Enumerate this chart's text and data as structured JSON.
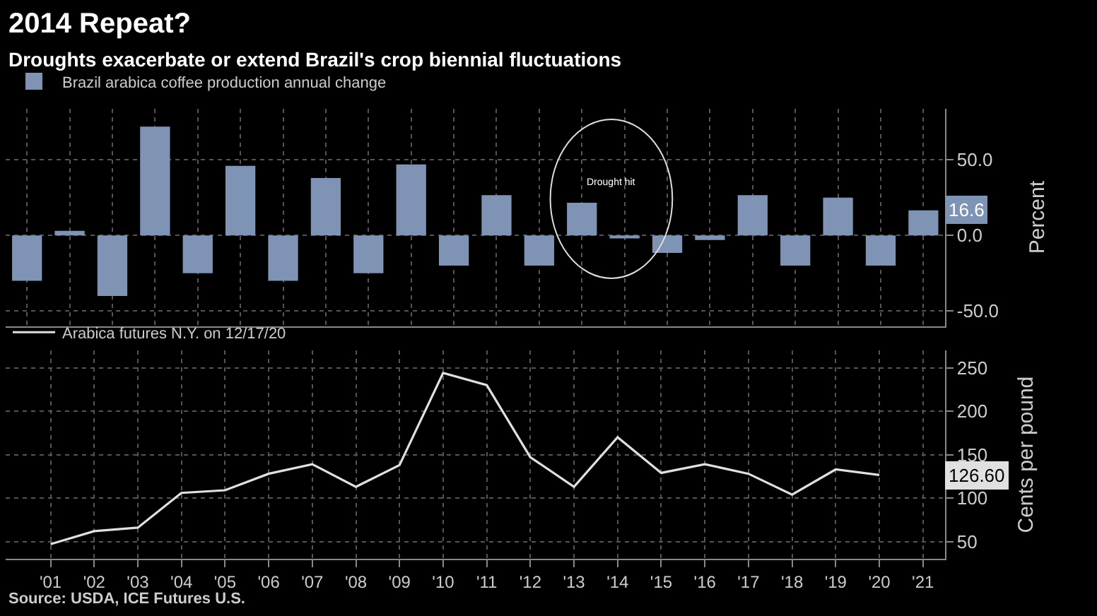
{
  "chart_data": [
    {
      "type": "bar",
      "title": "2014 Repeat?",
      "subtitle": "Droughts exacerbate or extend Brazil's crop biennial fluctuations",
      "ylabel": "Percent",
      "categories": [
        null,
        null,
        null,
        null,
        null,
        null,
        null,
        null,
        null,
        null,
        null,
        null,
        null,
        null,
        null,
        null,
        null,
        null,
        null,
        null,
        null,
        null
      ],
      "series": [
        {
          "name": "Brazil arabica coffee production annual change",
          "color": "#7f93b5",
          "values": [
            -30,
            3,
            -40,
            72,
            -25,
            46,
            -30,
            38,
            -25,
            47,
            -20,
            26.6,
            -20,
            21.6,
            -2,
            -11.5,
            -3,
            26.6,
            -20,
            25,
            -20,
            16.6
          ]
        }
      ],
      "ylim": [
        -60,
        84
      ],
      "yticks": [
        {
          "value": -50,
          "label": "-50.0"
        },
        {
          "value": 0,
          "label": "0.0"
        },
        {
          "value": 50,
          "label": "50.0"
        }
      ],
      "tick_labels": "y",
      "grid": true,
      "legend": "top left",
      "annotations": [
        "Drought hit",
        "16.6"
      ]
    },
    {
      "type": "line",
      "ylabel": "Cents per pound",
      "x": [
        2001,
        2002,
        2003,
        2004,
        2005,
        2006,
        2007,
        2008,
        2009,
        2010,
        2011,
        2012,
        2013,
        2014,
        2015,
        2016,
        2017,
        2018,
        2019,
        2020
      ],
      "series": [
        {
          "name": "Arabica futures N.Y. on 12/17/20",
          "color": "#e0e0e0",
          "values": [
            47,
            62,
            66,
            106,
            109,
            128,
            139,
            113,
            138,
            244,
            230,
            147,
            113,
            170,
            129,
            139,
            128,
            104,
            133,
            126.6
          ]
        }
      ],
      "xlim": [
        1999.97,
        2021.5
      ],
      "xticks": [
        {
          "value": 2001,
          "label": "'01"
        },
        {
          "value": 2002,
          "label": "'02"
        },
        {
          "value": 2003,
          "label": "'03"
        },
        {
          "value": 2004,
          "label": "'04"
        },
        {
          "value": 2005,
          "label": "'05"
        },
        {
          "value": 2006,
          "label": "'06"
        },
        {
          "value": 2007,
          "label": "'07"
        },
        {
          "value": 2008,
          "label": "'08"
        },
        {
          "value": 2009,
          "label": "'09"
        },
        {
          "value": 2010,
          "label": "'10"
        },
        {
          "value": 2011,
          "label": "'11"
        },
        {
          "value": 2012,
          "label": "'12"
        },
        {
          "value": 2013,
          "label": "'13"
        },
        {
          "value": 2014,
          "label": "'14"
        },
        {
          "value": 2015,
          "label": "'15"
        },
        {
          "value": 2016,
          "label": "'16"
        },
        {
          "value": 2017,
          "label": "'17"
        },
        {
          "value": 2018,
          "label": "'18"
        },
        {
          "value": 2019,
          "label": "'19"
        },
        {
          "value": 2020,
          "label": "'20"
        },
        {
          "value": 2021,
          "label": "'21"
        }
      ],
      "ylim": [
        30,
        270
      ],
      "yticks": [
        50,
        100,
        150,
        200,
        250
      ],
      "grid": true,
      "legend": "top left",
      "marker": "none",
      "line_style": "solid",
      "annotations": [
        "126.60",
        "Source: USDA, ICE Futures U.S."
      ]
    }
  ]
}
